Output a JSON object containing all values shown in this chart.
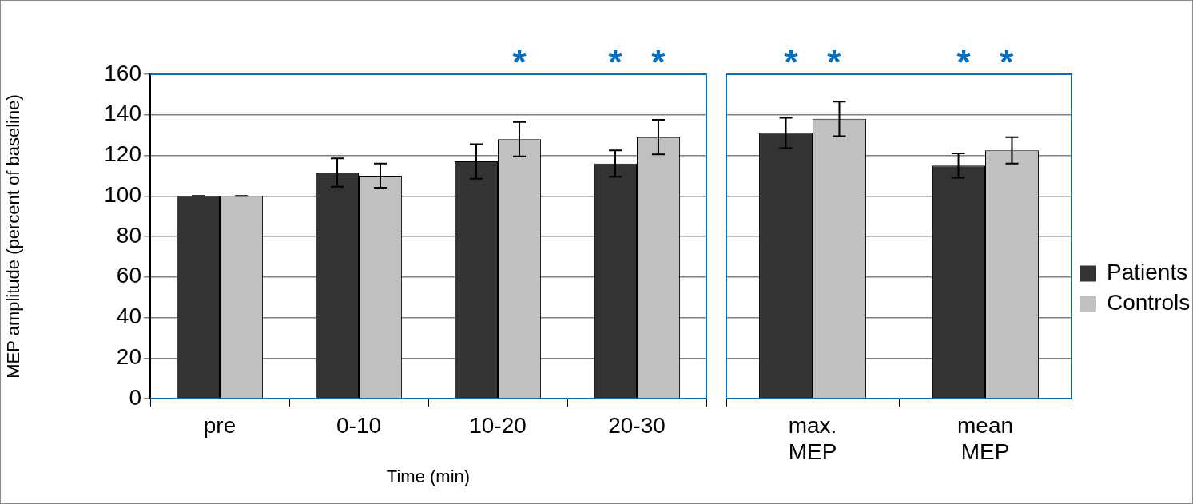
{
  "chart_data": [
    {
      "type": "bar",
      "ylabel": "MEP amplitude (percent of baseline)",
      "xlabel": "Time (min)",
      "categories": [
        "pre",
        "0-10",
        "10-20",
        "20-30"
      ],
      "series": [
        {
          "color": "#333333",
          "values": [
            100,
            111.5,
            117,
            116
          ],
          "errors": [
            0,
            7,
            8.5,
            6.5
          ]
        },
        {
          "color": "#c0c0c0",
          "values": [
            100,
            110,
            128,
            129
          ],
          "errors": [
            0,
            6,
            8.5,
            8.5
          ]
        }
      ],
      "ylim": [
        0,
        160
      ],
      "yticks": [
        0,
        20,
        40,
        60,
        80,
        100,
        120,
        140,
        160
      ],
      "grid": "y",
      "legend": false,
      "annotations": [
        "*",
        "* *"
      ]
    },
    {
      "type": "bar",
      "categories": [
        "max. MEP",
        "mean MEP"
      ],
      "series": [
        {
          "name": "Patients",
          "color": "#333333",
          "values": [
            131,
            115
          ],
          "errors": [
            7.5,
            6
          ]
        },
        {
          "name": "Controls",
          "color": "#c0c0c0",
          "values": [
            138,
            122.5
          ],
          "errors": [
            8.5,
            6.5
          ]
        }
      ],
      "ylim": [
        0,
        160
      ],
      "yticks": [
        0,
        20,
        40,
        60,
        80,
        100,
        120,
        140,
        160
      ],
      "grid": "y",
      "legend": "right",
      "tick_labels": "x",
      "annotations": [
        "* *",
        "* *"
      ]
    }
  ]
}
